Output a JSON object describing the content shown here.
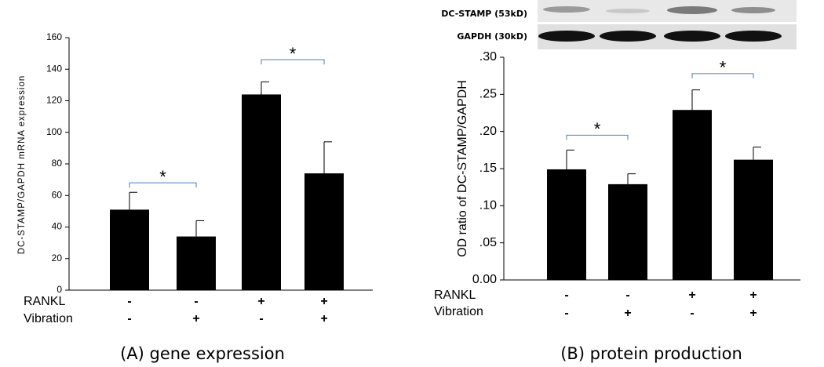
{
  "chart_data": [
    {
      "type": "bar",
      "ylabel": "DC-STAMP/GAPDH mRNA expression",
      "condition_rows": [
        {
          "name": "RANKL",
          "labels": [
            "-",
            "-",
            "+",
            "+"
          ]
        },
        {
          "name": "Vibration",
          "labels": [
            "-",
            "+",
            "-",
            "+"
          ]
        }
      ],
      "values": [
        51,
        34,
        124,
        74
      ],
      "errors": [
        11,
        10,
        8,
        20
      ],
      "color": "#000000",
      "ylim": [
        0,
        160
      ],
      "yticks": [
        0,
        20,
        40,
        60,
        80,
        100,
        120,
        140,
        160
      ],
      "brackets": [
        {
          "from": 0,
          "to": 1,
          "y": 68,
          "label": "*"
        },
        {
          "from": 2,
          "to": 3,
          "y": 146,
          "label": "*"
        }
      ],
      "bracket_color": "#4a7ebb",
      "caption": "(A) gene expression"
    },
    {
      "type": "bar",
      "ylabel": "OD ratio of DC-STAMP/GAPDH",
      "condition_rows": [
        {
          "name": "RANKL",
          "labels": [
            "-",
            "-",
            "+",
            "+"
          ]
        },
        {
          "name": "Vibration",
          "labels": [
            "-",
            "+",
            "-",
            "+"
          ]
        }
      ],
      "values": [
        0.149,
        0.129,
        0.229,
        0.162
      ],
      "errors": [
        0.026,
        0.014,
        0.027,
        0.017
      ],
      "color": "#000000",
      "ylim": [
        0,
        0.3
      ],
      "yticks": [
        {
          "value": 0,
          "label": "0.00"
        },
        {
          "value": 0.05,
          "label": ".05"
        },
        {
          "value": 0.1,
          "label": ".10"
        },
        {
          "value": 0.15,
          "label": ".15"
        },
        {
          "value": 0.2,
          "label": ".20"
        },
        {
          "value": 0.25,
          "label": ".25"
        },
        {
          "value": 0.3,
          "label": ".30"
        }
      ],
      "brackets": [
        {
          "from": 0,
          "to": 1,
          "y": 0.195,
          "label": "*"
        },
        {
          "from": 2,
          "to": 3,
          "y": 0.278,
          "label": "*"
        }
      ],
      "bracket_color": "#4a7ebb",
      "blot_labels": [
        "DC-STAMP (53kD)",
        "GAPDH (30kD)"
      ],
      "caption": "(B) protein production"
    }
  ]
}
